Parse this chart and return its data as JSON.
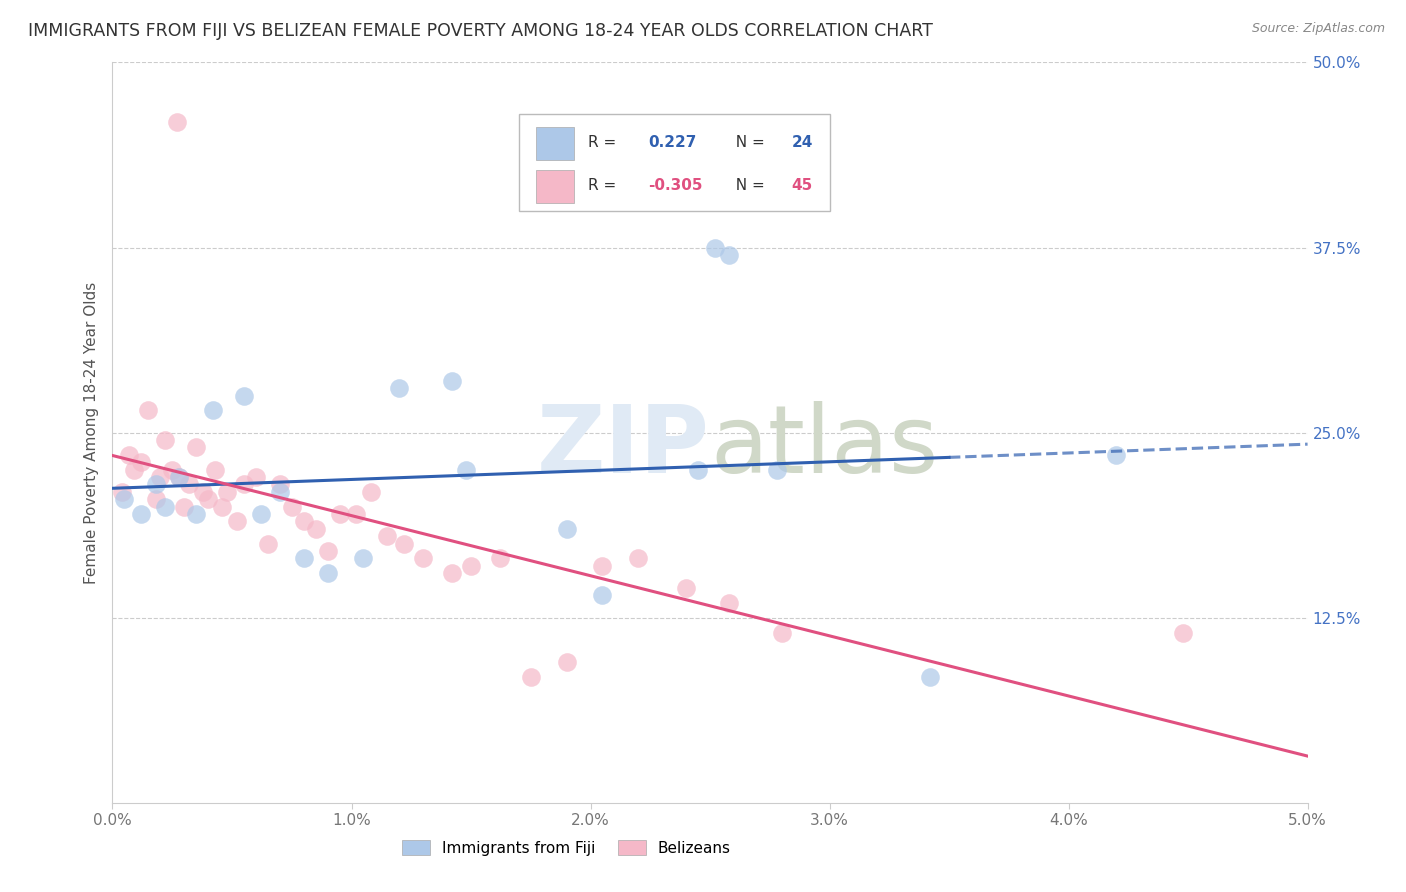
{
  "title": "IMMIGRANTS FROM FIJI VS BELIZEAN FEMALE POVERTY AMONG 18-24 YEAR OLDS CORRELATION CHART",
  "source": "Source: ZipAtlas.com",
  "ylabel": "Female Poverty Among 18-24 Year Olds",
  "xlim": [
    0.0,
    5.0
  ],
  "ylim": [
    0.0,
    50.0
  ],
  "xtick_vals": [
    0.0,
    1.0,
    2.0,
    3.0,
    4.0,
    5.0
  ],
  "xtick_labels": [
    "0.0%",
    "1.0%",
    "2.0%",
    "3.0%",
    "4.0%",
    "5.0%"
  ],
  "ytick_vals": [
    0.0,
    12.5,
    25.0,
    37.5,
    50.0
  ],
  "ytick_labels": [
    "",
    "12.5%",
    "25.0%",
    "37.5%",
    "50.0%"
  ],
  "fiji_R": 0.227,
  "fiji_N": 24,
  "belize_R": -0.305,
  "belize_N": 45,
  "fiji_color": "#adc8e8",
  "belize_color": "#f5b8c8",
  "fiji_line_color": "#3060b0",
  "belize_line_color": "#e05080",
  "fiji_x": [
    0.05,
    0.12,
    0.18,
    0.22,
    0.28,
    0.35,
    0.42,
    0.55,
    0.62,
    0.7,
    0.8,
    0.9,
    1.05,
    1.2,
    1.42,
    1.48,
    1.9,
    2.05,
    2.45,
    2.52,
    2.58,
    2.78,
    3.42,
    4.2
  ],
  "fiji_y": [
    20.5,
    19.5,
    21.5,
    20.0,
    22.0,
    19.5,
    26.5,
    27.5,
    19.5,
    21.0,
    16.5,
    15.5,
    16.5,
    28.0,
    28.5,
    22.5,
    18.5,
    14.0,
    22.5,
    37.5,
    37.0,
    22.5,
    8.5,
    23.5
  ],
  "belize_x": [
    0.04,
    0.07,
    0.09,
    0.12,
    0.15,
    0.18,
    0.2,
    0.22,
    0.25,
    0.28,
    0.3,
    0.32,
    0.35,
    0.38,
    0.4,
    0.43,
    0.46,
    0.48,
    0.52,
    0.55,
    0.6,
    0.65,
    0.7,
    0.75,
    0.8,
    0.85,
    0.9,
    0.95,
    1.02,
    1.08,
    1.15,
    1.22,
    1.3,
    1.42,
    1.5,
    1.62,
    1.75,
    1.9,
    2.05,
    2.2,
    2.4,
    2.58,
    2.8,
    4.48,
    0.27
  ],
  "belize_y": [
    21.0,
    23.5,
    22.5,
    23.0,
    26.5,
    20.5,
    22.0,
    24.5,
    22.5,
    22.0,
    20.0,
    21.5,
    24.0,
    21.0,
    20.5,
    22.5,
    20.0,
    21.0,
    19.0,
    21.5,
    22.0,
    17.5,
    21.5,
    20.0,
    19.0,
    18.5,
    17.0,
    19.5,
    19.5,
    21.0,
    18.0,
    17.5,
    16.5,
    15.5,
    16.0,
    16.5,
    8.5,
    9.5,
    16.0,
    16.5,
    14.5,
    13.5,
    11.5,
    11.5,
    46.0
  ]
}
